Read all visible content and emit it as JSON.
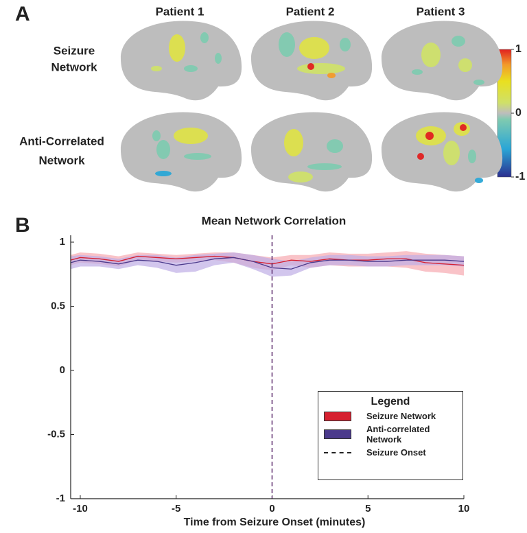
{
  "panel_a": {
    "label": "A",
    "columns": [
      "Patient 1",
      "Patient 2",
      "Patient 3"
    ],
    "rows": [
      [
        "Seizure",
        "Network"
      ],
      [
        "Anti-Correlated",
        "Network"
      ]
    ],
    "colorbar": {
      "lim": [
        -1,
        1
      ],
      "ticks": [
        1,
        0,
        -1
      ]
    }
  },
  "chart_data": {
    "type": "line",
    "panel_label": "B",
    "title": "Mean Network Correlation",
    "xlabel": "Time from Seizure Onset (minutes)",
    "x": [
      -10.5,
      -10,
      -9,
      -8,
      -7,
      -6,
      -5,
      -4,
      -3,
      -2,
      -1,
      0,
      1,
      2,
      3,
      4,
      5,
      6,
      7,
      8,
      9,
      10
    ],
    "series": [
      {
        "name": "Seizure Network",
        "color": "#d62030",
        "band_color": "#f6a9b0",
        "values": [
          0.86,
          0.88,
          0.87,
          0.85,
          0.89,
          0.88,
          0.87,
          0.88,
          0.89,
          0.88,
          0.85,
          0.83,
          0.86,
          0.85,
          0.87,
          0.86,
          0.86,
          0.87,
          0.87,
          0.84,
          0.83,
          0.82
        ],
        "lower": [
          0.82,
          0.84,
          0.83,
          0.81,
          0.86,
          0.85,
          0.84,
          0.85,
          0.86,
          0.84,
          0.8,
          0.78,
          0.82,
          0.8,
          0.82,
          0.81,
          0.81,
          0.81,
          0.8,
          0.77,
          0.76,
          0.74
        ],
        "upper": [
          0.9,
          0.92,
          0.91,
          0.89,
          0.92,
          0.91,
          0.9,
          0.91,
          0.92,
          0.92,
          0.9,
          0.88,
          0.9,
          0.9,
          0.92,
          0.91,
          0.91,
          0.92,
          0.93,
          0.91,
          0.9,
          0.89
        ]
      },
      {
        "name": "Anti-correlated Network",
        "color": "#4b3a8c",
        "band_color": "#bfaee6",
        "values": [
          0.84,
          0.86,
          0.85,
          0.83,
          0.86,
          0.85,
          0.82,
          0.84,
          0.87,
          0.88,
          0.85,
          0.8,
          0.79,
          0.84,
          0.86,
          0.86,
          0.85,
          0.85,
          0.86,
          0.86,
          0.86,
          0.85
        ],
        "lower": [
          0.79,
          0.81,
          0.81,
          0.79,
          0.82,
          0.8,
          0.76,
          0.77,
          0.82,
          0.84,
          0.79,
          0.73,
          0.74,
          0.8,
          0.82,
          0.82,
          0.81,
          0.81,
          0.82,
          0.82,
          0.82,
          0.81
        ],
        "upper": [
          0.89,
          0.9,
          0.89,
          0.87,
          0.9,
          0.9,
          0.88,
          0.9,
          0.91,
          0.92,
          0.9,
          0.87,
          0.85,
          0.88,
          0.9,
          0.9,
          0.89,
          0.89,
          0.9,
          0.9,
          0.9,
          0.89
        ]
      }
    ],
    "annotations": [
      {
        "x": 0,
        "label": "Seizure Onset",
        "color": "#5a2a6a"
      }
    ],
    "legend": {
      "title": "Legend",
      "position": "lower right"
    },
    "xlim": [
      -10.5,
      10
    ],
    "ylim": [
      -1,
      1
    ],
    "xticks": [
      -10,
      -5,
      0,
      5,
      10
    ],
    "yticks": [
      1,
      0.5,
      0,
      -0.5,
      -1
    ]
  }
}
